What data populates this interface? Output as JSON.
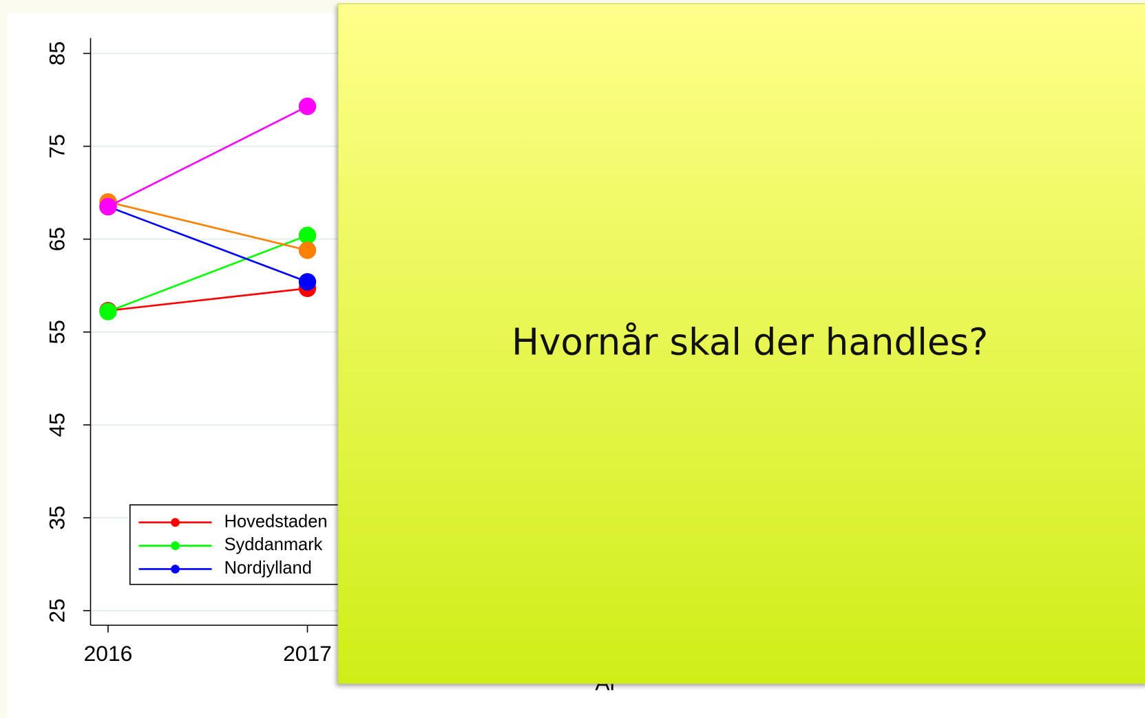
{
  "chart_data": {
    "type": "line",
    "categories": [
      "2016",
      "2017"
    ],
    "x_label": "År",
    "series": [
      {
        "name": "Hovedstaden",
        "color": "#ff0000",
        "values": [
          57.3,
          59.7
        ]
      },
      {
        "name": "Syddanmark",
        "color": "#00ff00",
        "values": [
          57.2,
          65.4
        ]
      },
      {
        "name": "Nordjylland",
        "color": "#0000ff",
        "values": [
          68.5,
          60.4
        ]
      },
      {
        "color": "#ff8000",
        "values": [
          69.0,
          63.8
        ]
      },
      {
        "color": "#ff00ff",
        "values": [
          68.5,
          79.3
        ]
      }
    ],
    "ylim": [
      25,
      85
    ],
    "yticks": [
      25,
      35,
      45,
      55,
      65,
      75,
      85
    ],
    "grid": true
  },
  "overlay": {
    "text": "Hvornår skal der handles?"
  }
}
